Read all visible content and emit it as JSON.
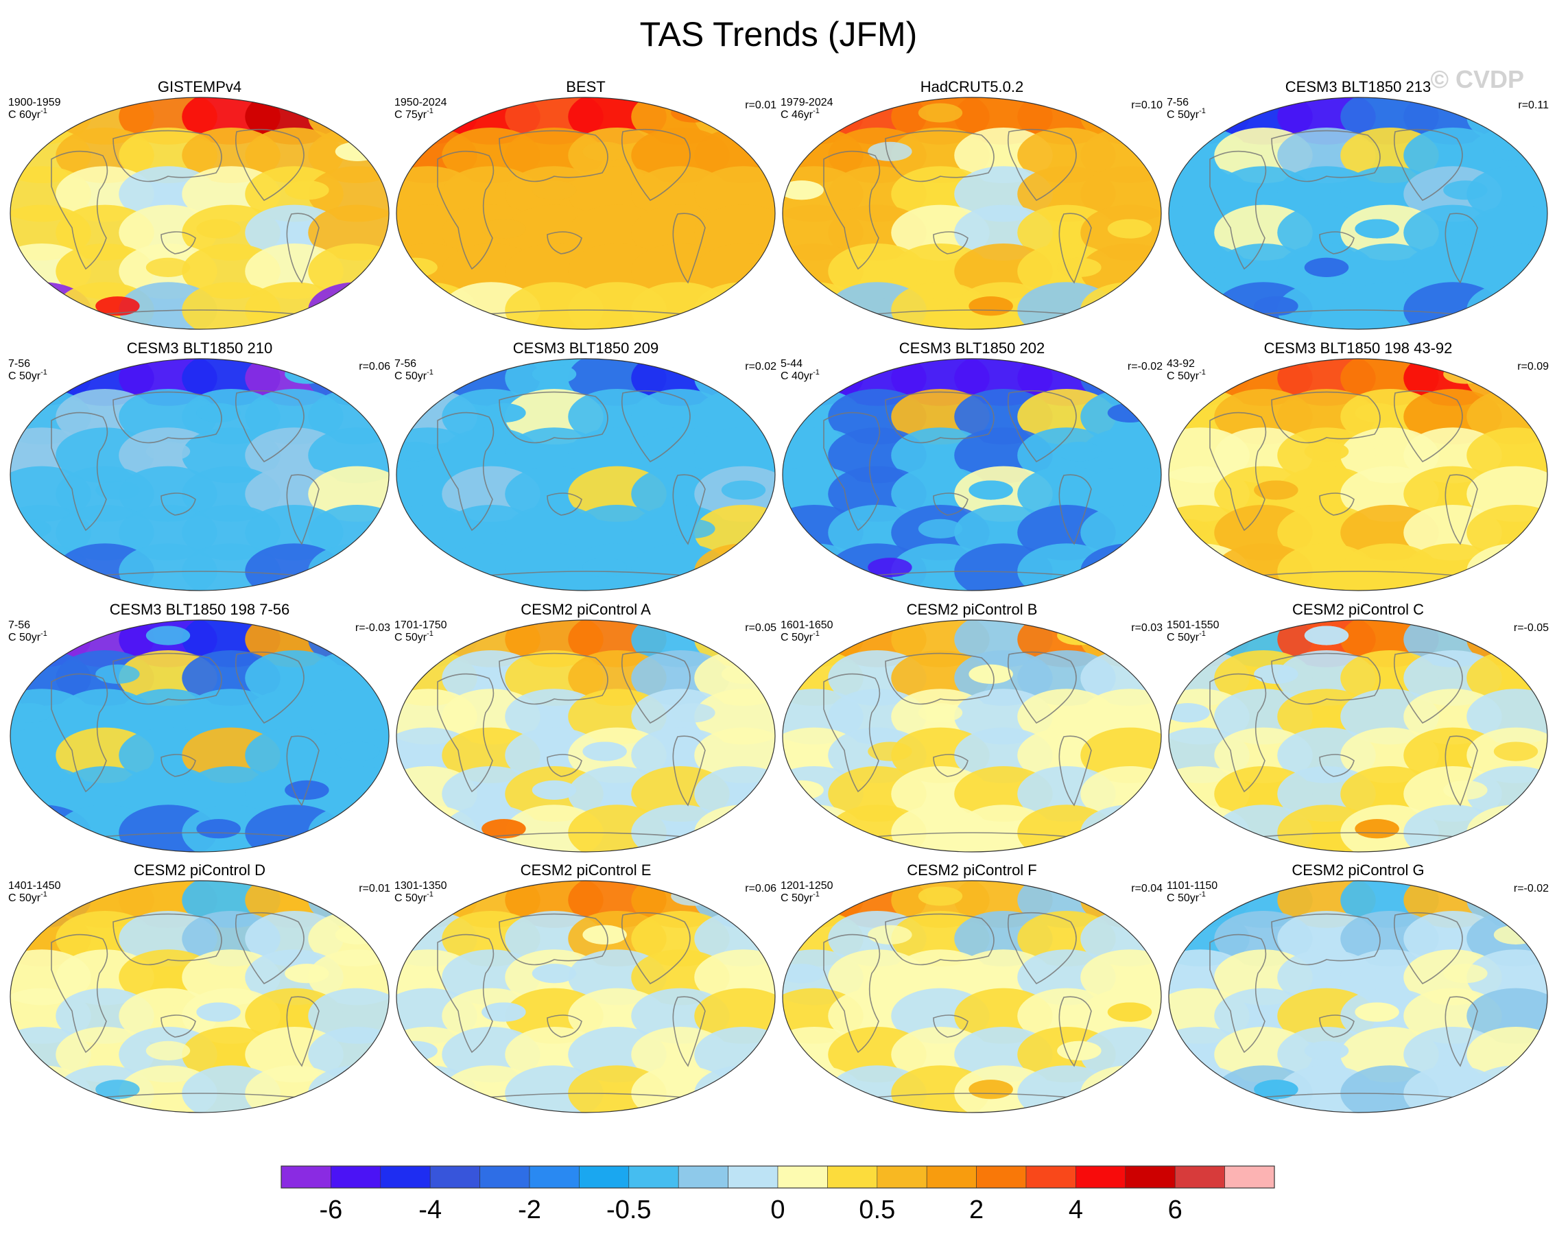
{
  "figure": {
    "title": "TAS Trends (JFM)",
    "watermark": "© CVDP"
  },
  "panels": [
    {
      "title": "GISTEMPv4",
      "period": "1900-1959",
      "units": "C 60yr",
      "unit_exp": "-1",
      "r": "",
      "tone": "warm-mixed",
      "cells": [
        [
          "w3",
          "w3",
          "w5",
          "w7",
          "w8",
          "w3"
        ],
        [
          "w2",
          "w3",
          "w2",
          "w3",
          "w3",
          "w3"
        ],
        [
          "w2",
          "w1",
          "c1",
          "w1",
          "w2",
          "w3"
        ],
        [
          "w2",
          "w2",
          "w1",
          "w2",
          "c1",
          "w3"
        ],
        [
          "w1",
          "w2",
          "w1",
          "w2",
          "w1",
          "w2"
        ],
        [
          "c7",
          "w2",
          "c2",
          "w2",
          "w2",
          "c7"
        ]
      ]
    },
    {
      "title": "BEST",
      "period": "1950-2024",
      "units": "C 75yr",
      "unit_exp": "-1",
      "r": "r=0.01",
      "tone": "hot",
      "cells": [
        [
          "w6",
          "w7",
          "w6",
          "w7",
          "w4",
          "w3"
        ],
        [
          "w5",
          "w4",
          "w4",
          "w3",
          "w4",
          "w4"
        ],
        [
          "w3",
          "w3",
          "w3",
          "w3",
          "w3",
          "w3"
        ],
        [
          "w3",
          "w3",
          "w3",
          "w3",
          "w3",
          "w3"
        ],
        [
          "w3",
          "w3",
          "w3",
          "w3",
          "w3",
          "w3"
        ],
        [
          "w2",
          "w1",
          "w2",
          "w2",
          "w2",
          "w2"
        ]
      ]
    },
    {
      "title": "HadCRUT5.0.2",
      "period": "1979-2024",
      "units": "C 46yr",
      "unit_exp": "-1",
      "r": "r=0.10",
      "tone": "warm",
      "cells": [
        [
          "w5",
          "w6",
          "w5",
          "w5",
          "w5",
          "w4"
        ],
        [
          "w4",
          "w4",
          "w3",
          "w1",
          "w3",
          "w3"
        ],
        [
          "w3",
          "w3",
          "w2",
          "c1",
          "w3",
          "w3"
        ],
        [
          "w3",
          "w3",
          "w1",
          "c1",
          "w2",
          "w3"
        ],
        [
          "w3",
          "w2",
          "w2",
          "w3",
          "w2",
          "w3"
        ],
        [
          "w2",
          "c2",
          "w2",
          "w2",
          "c2",
          "w2"
        ]
      ]
    },
    {
      "title": "CESM3 BLT1850 213",
      "period": "7-56",
      "units": "C 50yr",
      "unit_exp": "-1",
      "r": "r=0.11",
      "tone": "cold",
      "cells": [
        [
          "c4",
          "c5",
          "c6",
          "c4",
          "c4",
          "c3"
        ],
        [
          "c3",
          "w1",
          "c2",
          "w2",
          "c3",
          "c3"
        ],
        [
          "c3",
          "c3",
          "c3",
          "c3",
          "c2",
          "c3"
        ],
        [
          "c3",
          "w1",
          "c3",
          "w1",
          "c3",
          "c3"
        ],
        [
          "c3",
          "c3",
          "c3",
          "c3",
          "c3",
          "c3"
        ],
        [
          "c3",
          "c4",
          "c3",
          "c3",
          "c4",
          "c3"
        ]
      ]
    },
    {
      "title": "CESM3 BLT1850 210",
      "period": "7-56",
      "units": "C 50yr",
      "unit_exp": "-1",
      "r": "r=0.06",
      "tone": "cold",
      "cells": [
        [
          "c4",
          "c5",
          "c6",
          "c5",
          "c7",
          "c4"
        ],
        [
          "c3",
          "c2",
          "c3",
          "c3",
          "c3",
          "c3"
        ],
        [
          "c2",
          "c3",
          "c2",
          "c3",
          "c2",
          "c3"
        ],
        [
          "c3",
          "c3",
          "c3",
          "c3",
          "c2",
          "w1"
        ],
        [
          "c3",
          "c3",
          "c3",
          "c3",
          "c3",
          "c3"
        ],
        [
          "c3",
          "c4",
          "c3",
          "c3",
          "c4",
          "c3"
        ]
      ]
    },
    {
      "title": "CESM3 BLT1850 209",
      "period": "7-56",
      "units": "C 50yr",
      "unit_exp": "-1",
      "r": "r=0.02",
      "tone": "cold",
      "cells": [
        [
          "c3",
          "c4",
          "c3",
          "c4",
          "c5",
          "c3"
        ],
        [
          "c2",
          "c3",
          "w1",
          "c3",
          "c3",
          "c3"
        ],
        [
          "c3",
          "c3",
          "c3",
          "c3",
          "c3",
          "c3"
        ],
        [
          "c3",
          "c2",
          "c3",
          "w2",
          "c3",
          "c2"
        ],
        [
          "c3",
          "c3",
          "c3",
          "c3",
          "c3",
          "w2"
        ],
        [
          "c3",
          "c3",
          "c3",
          "c3",
          "c3",
          "w3"
        ]
      ]
    },
    {
      "title": "CESM3 BLT1850 202",
      "period": "5-44",
      "units": "C 40yr",
      "unit_exp": "-1",
      "r": "r=-0.02",
      "tone": "very-cold",
      "cells": [
        [
          "c5",
          "c6",
          "c6",
          "c6",
          "c6",
          "c4"
        ],
        [
          "c3",
          "c4",
          "w3",
          "c4",
          "w2",
          "c3"
        ],
        [
          "c3",
          "c4",
          "c3",
          "c4",
          "c3",
          "c3"
        ],
        [
          "c3",
          "c4",
          "c3",
          "w1",
          "c3",
          "c3"
        ],
        [
          "c4",
          "c3",
          "c4",
          "c3",
          "c4",
          "c3"
        ],
        [
          "c3",
          "c4",
          "c3",
          "c4",
          "c3",
          "c4"
        ]
      ]
    },
    {
      "title": "CESM3 BLT1850 198 43-92",
      "period": "43-92",
      "units": "C 50yr",
      "unit_exp": "-1",
      "r": "r=0.09",
      "tone": "warm",
      "cells": [
        [
          "w3",
          "w5",
          "w6",
          "w5",
          "w7",
          "w3"
        ],
        [
          "w2",
          "w3",
          "w3",
          "w2",
          "w4",
          "w3"
        ],
        [
          "w1",
          "w1",
          "w2",
          "w1",
          "w1",
          "w2"
        ],
        [
          "w1",
          "w2",
          "w2",
          "w1",
          "w2",
          "w1"
        ],
        [
          "w2",
          "w3",
          "w2",
          "w3",
          "w1",
          "w2"
        ],
        [
          "w1",
          "w3",
          "w2",
          "w2",
          "w2",
          "w1"
        ]
      ]
    },
    {
      "title": "CESM3 BLT1850 198 7-56",
      "period": "7-56",
      "units": "C 50yr",
      "unit_exp": "-1",
      "r": "r=-0.03",
      "tone": "very-cold",
      "cells": [
        [
          "c6",
          "c7",
          "c6",
          "c5",
          "w4",
          "c4"
        ],
        [
          "c4",
          "c4",
          "w2",
          "c4",
          "c3",
          "c3"
        ],
        [
          "c3",
          "c3",
          "c3",
          "c3",
          "c3",
          "c3"
        ],
        [
          "c3",
          "w2",
          "c3",
          "w3",
          "c3",
          "c3"
        ],
        [
          "c3",
          "c3",
          "c3",
          "c3",
          "c3",
          "c3"
        ],
        [
          "c4",
          "c3",
          "c4",
          "c3",
          "c4",
          "c3"
        ]
      ]
    },
    {
      "title": "CESM2 piControl A",
      "period": "1701-1750",
      "units": "C 50yr",
      "unit_exp": "-1",
      "r": "r=0.05",
      "tone": "mixed",
      "cells": [
        [
          "c2",
          "w3",
          "w4",
          "w5",
          "c3",
          "w2"
        ],
        [
          "w2",
          "c1",
          "w2",
          "w3",
          "c2",
          "w1"
        ],
        [
          "w1",
          "w1",
          "c1",
          "w2",
          "c1",
          "w1"
        ],
        [
          "c1",
          "w2",
          "c1",
          "w1",
          "c1",
          "w1"
        ],
        [
          "w1",
          "c1",
          "w2",
          "c1",
          "w2",
          "c1"
        ],
        [
          "w1",
          "c1",
          "w1",
          "w2",
          "c1",
          "w1"
        ]
      ]
    },
    {
      "title": "CESM2 piControl B",
      "period": "1601-1650",
      "units": "C 50yr",
      "unit_exp": "-1",
      "r": "r=0.03",
      "tone": "mixed",
      "cells": [
        [
          "w3",
          "w4",
          "w3",
          "c2",
          "w5",
          "w3"
        ],
        [
          "w2",
          "c1",
          "w3",
          "c2",
          "c2",
          "c1"
        ],
        [
          "c1",
          "c1",
          "w1",
          "c1",
          "w1",
          "w1"
        ],
        [
          "w1",
          "c1",
          "w2",
          "c1",
          "w1",
          "w2"
        ],
        [
          "c1",
          "w2",
          "w1",
          "w2",
          "c1",
          "w1"
        ],
        [
          "w1",
          "w2",
          "w1",
          "w1",
          "w2",
          "c1"
        ]
      ]
    },
    {
      "title": "CESM2 piControl C",
      "period": "1501-1550",
      "units": "C 50yr",
      "unit_exp": "-1",
      "r": "r=-0.05",
      "tone": "mixed-warm",
      "cells": [
        [
          "w4",
          "c3",
          "w6",
          "w5",
          "c2",
          "w4"
        ],
        [
          "c1",
          "w2",
          "c1",
          "w2",
          "c1",
          "w2"
        ],
        [
          "w1",
          "c1",
          "w2",
          "c1",
          "w1",
          "c1"
        ],
        [
          "c1",
          "w1",
          "c1",
          "w1",
          "w2",
          "w1"
        ],
        [
          "w1",
          "w2",
          "c1",
          "w2",
          "w1",
          "c1"
        ],
        [
          "w1",
          "c1",
          "w2",
          "w1",
          "c1",
          "w1"
        ]
      ]
    },
    {
      "title": "CESM2 piControl D",
      "period": "1401-1450",
      "units": "C 50yr",
      "unit_exp": "-1",
      "r": "r=0.01",
      "tone": "mixed",
      "cells": [
        [
          "c5",
          "w3",
          "w3",
          "c3",
          "w3",
          "c2"
        ],
        [
          "w3",
          "w2",
          "c1",
          "c2",
          "c1",
          "w1"
        ],
        [
          "w1",
          "w1",
          "w2",
          "w1",
          "c1",
          "w1"
        ],
        [
          "w1",
          "c1",
          "w1",
          "w1",
          "w2",
          "c1"
        ],
        [
          "c1",
          "w1",
          "c1",
          "w2",
          "w1",
          "c1"
        ],
        [
          "w1",
          "c1",
          "w1",
          "c1",
          "w1",
          "c1"
        ]
      ]
    },
    {
      "title": "CESM2 piControl E",
      "period": "1301-1350",
      "units": "C 50yr",
      "unit_exp": "-1",
      "r": "r=0.06",
      "tone": "mixed-warm",
      "cells": [
        [
          "w3",
          "w3",
          "w4",
          "w5",
          "w4",
          "c2"
        ],
        [
          "c1",
          "w2",
          "c1",
          "w3",
          "w2",
          "c1"
        ],
        [
          "w1",
          "c1",
          "w1",
          "c1",
          "w2",
          "w1"
        ],
        [
          "c1",
          "w1",
          "w2",
          "w1",
          "c1",
          "w2"
        ],
        [
          "w1",
          "c1",
          "w1",
          "c1",
          "w1",
          "c1"
        ],
        [
          "c1",
          "w1",
          "c1",
          "w2",
          "w1",
          "c1"
        ]
      ]
    },
    {
      "title": "CESM2 piControl F",
      "period": "1201-1250",
      "units": "C 50yr",
      "unit_exp": "-1",
      "r": "r=0.04",
      "tone": "mixed-warm",
      "cells": [
        [
          "w4",
          "w5",
          "w3",
          "w3",
          "c2",
          "w3"
        ],
        [
          "w2",
          "c1",
          "w2",
          "c2",
          "w2",
          "c1"
        ],
        [
          "c1",
          "w1",
          "w1",
          "w1",
          "c1",
          "w1"
        ],
        [
          "w2",
          "w1",
          "c1",
          "w2",
          "w1",
          "w1"
        ],
        [
          "w1",
          "w2",
          "w1",
          "c1",
          "w2",
          "c1"
        ],
        [
          "w1",
          "c1",
          "w2",
          "w1",
          "c1",
          "w1"
        ]
      ]
    },
    {
      "title": "CESM2 piControl G",
      "period": "1101-1150",
      "units": "C 50yr",
      "unit_exp": "-1",
      "r": "r=-0.02",
      "tone": "mixed-cold",
      "cells": [
        [
          "c2",
          "c3",
          "w3",
          "c3",
          "w3",
          "c2"
        ],
        [
          "c3",
          "c2",
          "c1",
          "c2",
          "c1",
          "c2"
        ],
        [
          "c1",
          "w1",
          "c1",
          "c1",
          "w1",
          "c1"
        ],
        [
          "w1",
          "c1",
          "w2",
          "c1",
          "w1",
          "c2"
        ],
        [
          "c1",
          "w1",
          "c1",
          "w1",
          "c1",
          "w1"
        ],
        [
          "c1",
          "c2",
          "c1",
          "c2",
          "c1",
          "c1"
        ]
      ]
    }
  ],
  "colorbar": {
    "colors": [
      "#8a2be2",
      "#4b13f5",
      "#1e2df2",
      "#3755db",
      "#2e6ee6",
      "#2989f2",
      "#1aa7f0",
      "#45bdf0",
      "#8ec9ea",
      "#bde3f5",
      "#fdfbb0",
      "#fcdc3c",
      "#f8b822",
      "#f89c0e",
      "#f97808",
      "#f9481a",
      "#f80b0b",
      "#cd0000",
      "#d73b3b",
      "#fcb3b3"
    ],
    "labels": [
      "-6",
      "-4",
      "-2",
      "-0.5",
      "0",
      "0.5",
      "2",
      "4",
      "6"
    ],
    "label_boundaries": [
      1,
      3,
      5,
      7,
      10,
      12,
      14,
      16,
      18
    ]
  },
  "palette": {
    "c7": "#8a2be2",
    "c6": "#4b13f5",
    "c5": "#1e2df2",
    "c4": "#2e6ee6",
    "c3": "#45bdf0",
    "c2": "#8ec9ea",
    "c1": "#bde3f5",
    "w1": "#fdfbb0",
    "w2": "#fcdc3c",
    "w3": "#f8b822",
    "w4": "#f89c0e",
    "w5": "#f97808",
    "w6": "#f9481a",
    "w7": "#f80b0b",
    "w8": "#cd0000"
  }
}
